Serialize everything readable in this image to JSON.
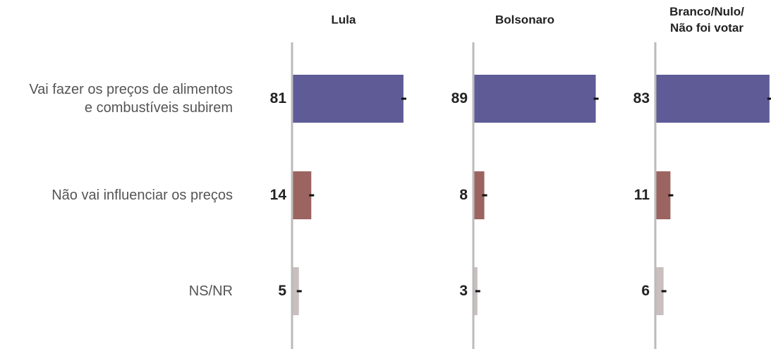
{
  "chart_data": {
    "type": "bar",
    "orientation": "horizontal",
    "categories": [
      "Vai fazer os preços de alimentos\ne combustíveis subirem",
      "Não vai influenciar os preços",
      "NS/NR"
    ],
    "colors": [
      "#5e5b97",
      "#9c6461",
      "#c9bfbf"
    ],
    "xlim": [
      0,
      100
    ],
    "series": [
      {
        "name": "Lula",
        "values": [
          81,
          14,
          5
        ]
      },
      {
        "name": "Bolsonaro",
        "values": [
          89,
          8,
          3
        ]
      },
      {
        "name": "Branco/Nulo/\nNão foi votar",
        "values": [
          83,
          11,
          6
        ]
      }
    ]
  }
}
